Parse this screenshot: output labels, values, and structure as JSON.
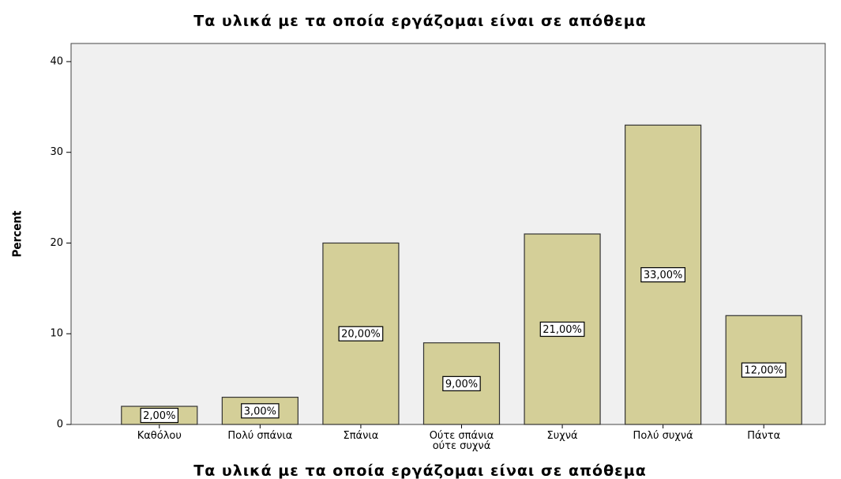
{
  "chart_data": {
    "type": "bar",
    "title": "Τα υλικά με τα οποία εργάζομαι είναι σε απόθεμα",
    "x_label": "Τα υλικά με τα οποία εργάζομαι είναι σε απόθεμα",
    "y_label": "Percent",
    "categories": [
      "Καθόλου",
      "Πολύ σπάνια",
      "Σπάνια",
      "Ούτε σπάνια ούτε συχνά",
      "Συχνά",
      "Πολύ συχνά",
      "Πάντα"
    ],
    "values": [
      2,
      3,
      20,
      9,
      21,
      33,
      12
    ],
    "value_labels": [
      "2,00%",
      "3,00%",
      "20,00%",
      "9,00%",
      "21,00%",
      "33,00%",
      "12,00%"
    ],
    "color": "#d4cf98",
    "ylim": [
      0,
      42
    ],
    "yticks": [
      0,
      10,
      20,
      30,
      40
    ],
    "grid": false
  }
}
